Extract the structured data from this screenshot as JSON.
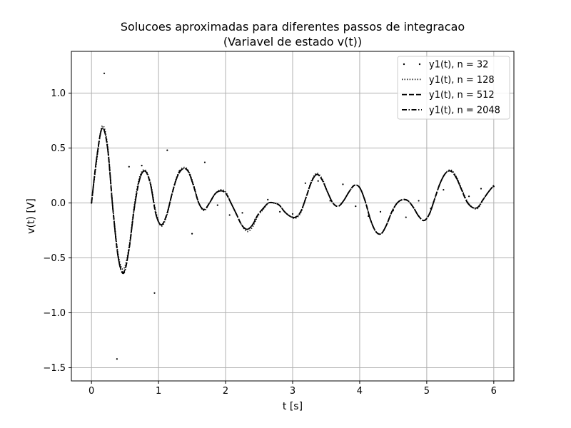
{
  "chart_data": {
    "type": "line",
    "title": "Solucoes aproximadas para diferentes passos de integracao",
    "subtitle": "(Variavel de estado v(t))",
    "xlabel": "t [s]",
    "ylabel": "v(t) [V]",
    "xlim": [
      -0.3,
      6.3
    ],
    "ylim": [
      -1.62,
      1.38
    ],
    "xticks": [
      0,
      1,
      2,
      3,
      4,
      5,
      6
    ],
    "xtick_labels": [
      "0",
      "1",
      "2",
      "3",
      "4",
      "5",
      "6"
    ],
    "yticks": [
      1.0,
      0.5,
      0.0,
      -0.5,
      -1.0,
      -1.5
    ],
    "ytick_labels": [
      "1.0",
      "0.5",
      "0.0",
      "−0.5",
      "−1.0",
      "−1.5"
    ],
    "grid": true,
    "legend_position": "upper right",
    "colors": {
      "series": "#000000",
      "grid": "#b0b0b0",
      "legend_border": "#cccccc"
    },
    "series": [
      {
        "name": "y1(t), n = 32",
        "style": "sparse dots",
        "x": [
          0.0,
          0.19,
          0.38,
          0.56,
          0.75,
          0.94,
          1.13,
          1.31,
          1.5,
          1.69,
          1.88,
          2.06,
          2.25,
          2.44,
          2.63,
          2.81,
          3.0,
          3.19,
          3.38,
          3.56,
          3.75,
          3.94,
          4.13,
          4.31,
          4.5,
          4.69,
          4.88,
          5.06,
          5.25,
          5.44,
          5.63,
          5.81,
          6.0
        ],
        "y": [
          0.0,
          1.18,
          -1.42,
          0.33,
          0.34,
          -0.82,
          0.48,
          0.29,
          -0.28,
          0.37,
          -0.02,
          -0.11,
          -0.09,
          -0.15,
          0.03,
          -0.08,
          -0.1,
          0.18,
          0.2,
          0.02,
          0.17,
          -0.03,
          -0.12,
          -0.08,
          -0.07,
          -0.13,
          0.02,
          -0.05,
          0.12,
          0.23,
          0.06,
          0.13,
          0.15
        ]
      },
      {
        "name": "y1(t), n = 128",
        "style": "dotted",
        "x": [
          0.0,
          0.08,
          0.16,
          0.24,
          0.32,
          0.4,
          0.48,
          0.56,
          0.64,
          0.72,
          0.8,
          0.88,
          0.96,
          1.04,
          1.12,
          1.2,
          1.28,
          1.36,
          1.44,
          1.52,
          1.6,
          1.68,
          1.76,
          1.84,
          1.92,
          2.0,
          2.08,
          2.16,
          2.24,
          2.32,
          2.4,
          2.48,
          2.56,
          2.64,
          2.72,
          2.8,
          2.88,
          2.96,
          3.04,
          3.12,
          3.2,
          3.28,
          3.36,
          3.44,
          3.52,
          3.6,
          3.68,
          3.76,
          3.84,
          3.92,
          4.0,
          4.08,
          4.16,
          4.24,
          4.32,
          4.4,
          4.48,
          4.56,
          4.64,
          4.72,
          4.8,
          4.88,
          4.96,
          5.04,
          5.12,
          5.2,
          5.28,
          5.36,
          5.44,
          5.52,
          5.6,
          5.68,
          5.76,
          5.84,
          5.92,
          6.0
        ],
        "y": [
          0.0,
          0.4,
          0.7,
          0.52,
          -0.05,
          -0.48,
          -0.6,
          -0.4,
          -0.02,
          0.24,
          0.3,
          0.18,
          -0.08,
          -0.21,
          -0.12,
          0.08,
          0.25,
          0.32,
          0.3,
          0.17,
          0.0,
          -0.07,
          0.0,
          0.08,
          0.12,
          0.1,
          0.0,
          -0.1,
          -0.2,
          -0.26,
          -0.22,
          -0.12,
          -0.06,
          0.0,
          0.0,
          -0.02,
          -0.08,
          -0.12,
          -0.14,
          -0.09,
          0.05,
          0.2,
          0.27,
          0.22,
          0.1,
          0.0,
          -0.03,
          0.02,
          0.1,
          0.16,
          0.14,
          0.02,
          -0.15,
          -0.26,
          -0.28,
          -0.2,
          -0.08,
          0.0,
          0.03,
          0.02,
          -0.04,
          -0.12,
          -0.16,
          -0.1,
          0.04,
          0.18,
          0.27,
          0.3,
          0.24,
          0.13,
          0.02,
          -0.04,
          -0.05,
          0.03,
          0.1,
          0.16
        ]
      },
      {
        "name": "y1(t), n = 512",
        "style": "dashed",
        "x": [
          0.0,
          0.08,
          0.16,
          0.24,
          0.32,
          0.4,
          0.48,
          0.56,
          0.64,
          0.72,
          0.8,
          0.88,
          0.96,
          1.04,
          1.12,
          1.2,
          1.28,
          1.36,
          1.44,
          1.52,
          1.6,
          1.68,
          1.76,
          1.84,
          1.92,
          2.0,
          2.08,
          2.16,
          2.24,
          2.32,
          2.4,
          2.48,
          2.56,
          2.64,
          2.72,
          2.8,
          2.88,
          2.96,
          3.04,
          3.12,
          3.2,
          3.28,
          3.36,
          3.44,
          3.52,
          3.6,
          3.68,
          3.76,
          3.84,
          3.92,
          4.0,
          4.08,
          4.16,
          4.24,
          4.32,
          4.4,
          4.48,
          4.56,
          4.64,
          4.72,
          4.8,
          4.88,
          4.96,
          5.04,
          5.12,
          5.2,
          5.28,
          5.36,
          5.44,
          5.52,
          5.6,
          5.68,
          5.76,
          5.84,
          5.92,
          6.0
        ],
        "y": [
          0.0,
          0.42,
          0.68,
          0.5,
          -0.06,
          -0.5,
          -0.63,
          -0.42,
          -0.04,
          0.22,
          0.29,
          0.17,
          -0.1,
          -0.2,
          -0.11,
          0.08,
          0.24,
          0.31,
          0.29,
          0.16,
          0.0,
          -0.06,
          0.0,
          0.08,
          0.11,
          0.09,
          0.0,
          -0.1,
          -0.2,
          -0.24,
          -0.2,
          -0.11,
          -0.05,
          0.0,
          0.0,
          -0.02,
          -0.08,
          -0.12,
          -0.13,
          -0.08,
          0.05,
          0.19,
          0.26,
          0.21,
          0.1,
          0.0,
          -0.03,
          0.02,
          0.1,
          0.16,
          0.14,
          0.02,
          -0.15,
          -0.26,
          -0.28,
          -0.2,
          -0.08,
          0.0,
          0.03,
          0.02,
          -0.04,
          -0.12,
          -0.16,
          -0.1,
          0.04,
          0.18,
          0.27,
          0.29,
          0.23,
          0.12,
          0.01,
          -0.04,
          -0.04,
          0.03,
          0.1,
          0.16
        ]
      },
      {
        "name": "y1(t), n = 2048",
        "style": "dash-dot",
        "x": [
          0.0,
          0.08,
          0.16,
          0.24,
          0.32,
          0.4,
          0.48,
          0.56,
          0.64,
          0.72,
          0.8,
          0.88,
          0.96,
          1.04,
          1.12,
          1.2,
          1.28,
          1.36,
          1.44,
          1.52,
          1.6,
          1.68,
          1.76,
          1.84,
          1.92,
          2.0,
          2.08,
          2.16,
          2.24,
          2.32,
          2.4,
          2.48,
          2.56,
          2.64,
          2.72,
          2.8,
          2.88,
          2.96,
          3.04,
          3.12,
          3.2,
          3.28,
          3.36,
          3.44,
          3.52,
          3.6,
          3.68,
          3.76,
          3.84,
          3.92,
          4.0,
          4.08,
          4.16,
          4.24,
          4.32,
          4.4,
          4.48,
          4.56,
          4.64,
          4.72,
          4.8,
          4.88,
          4.96,
          5.04,
          5.12,
          5.2,
          5.28,
          5.36,
          5.44,
          5.52,
          5.6,
          5.68,
          5.76,
          5.84,
          5.92,
          6.0
        ],
        "y": [
          0.0,
          0.42,
          0.68,
          0.5,
          -0.06,
          -0.5,
          -0.64,
          -0.42,
          -0.04,
          0.22,
          0.29,
          0.17,
          -0.1,
          -0.2,
          -0.11,
          0.08,
          0.24,
          0.31,
          0.29,
          0.16,
          0.0,
          -0.06,
          0.0,
          0.08,
          0.11,
          0.09,
          0.0,
          -0.1,
          -0.2,
          -0.24,
          -0.2,
          -0.11,
          -0.05,
          0.0,
          0.0,
          -0.02,
          -0.08,
          -0.12,
          -0.13,
          -0.08,
          0.05,
          0.19,
          0.26,
          0.21,
          0.1,
          0.0,
          -0.03,
          0.02,
          0.1,
          0.16,
          0.14,
          0.02,
          -0.15,
          -0.26,
          -0.28,
          -0.2,
          -0.08,
          0.0,
          0.03,
          0.02,
          -0.04,
          -0.12,
          -0.16,
          -0.1,
          0.04,
          0.18,
          0.27,
          0.29,
          0.23,
          0.12,
          0.01,
          -0.04,
          -0.04,
          0.03,
          0.1,
          0.16
        ]
      }
    ]
  }
}
